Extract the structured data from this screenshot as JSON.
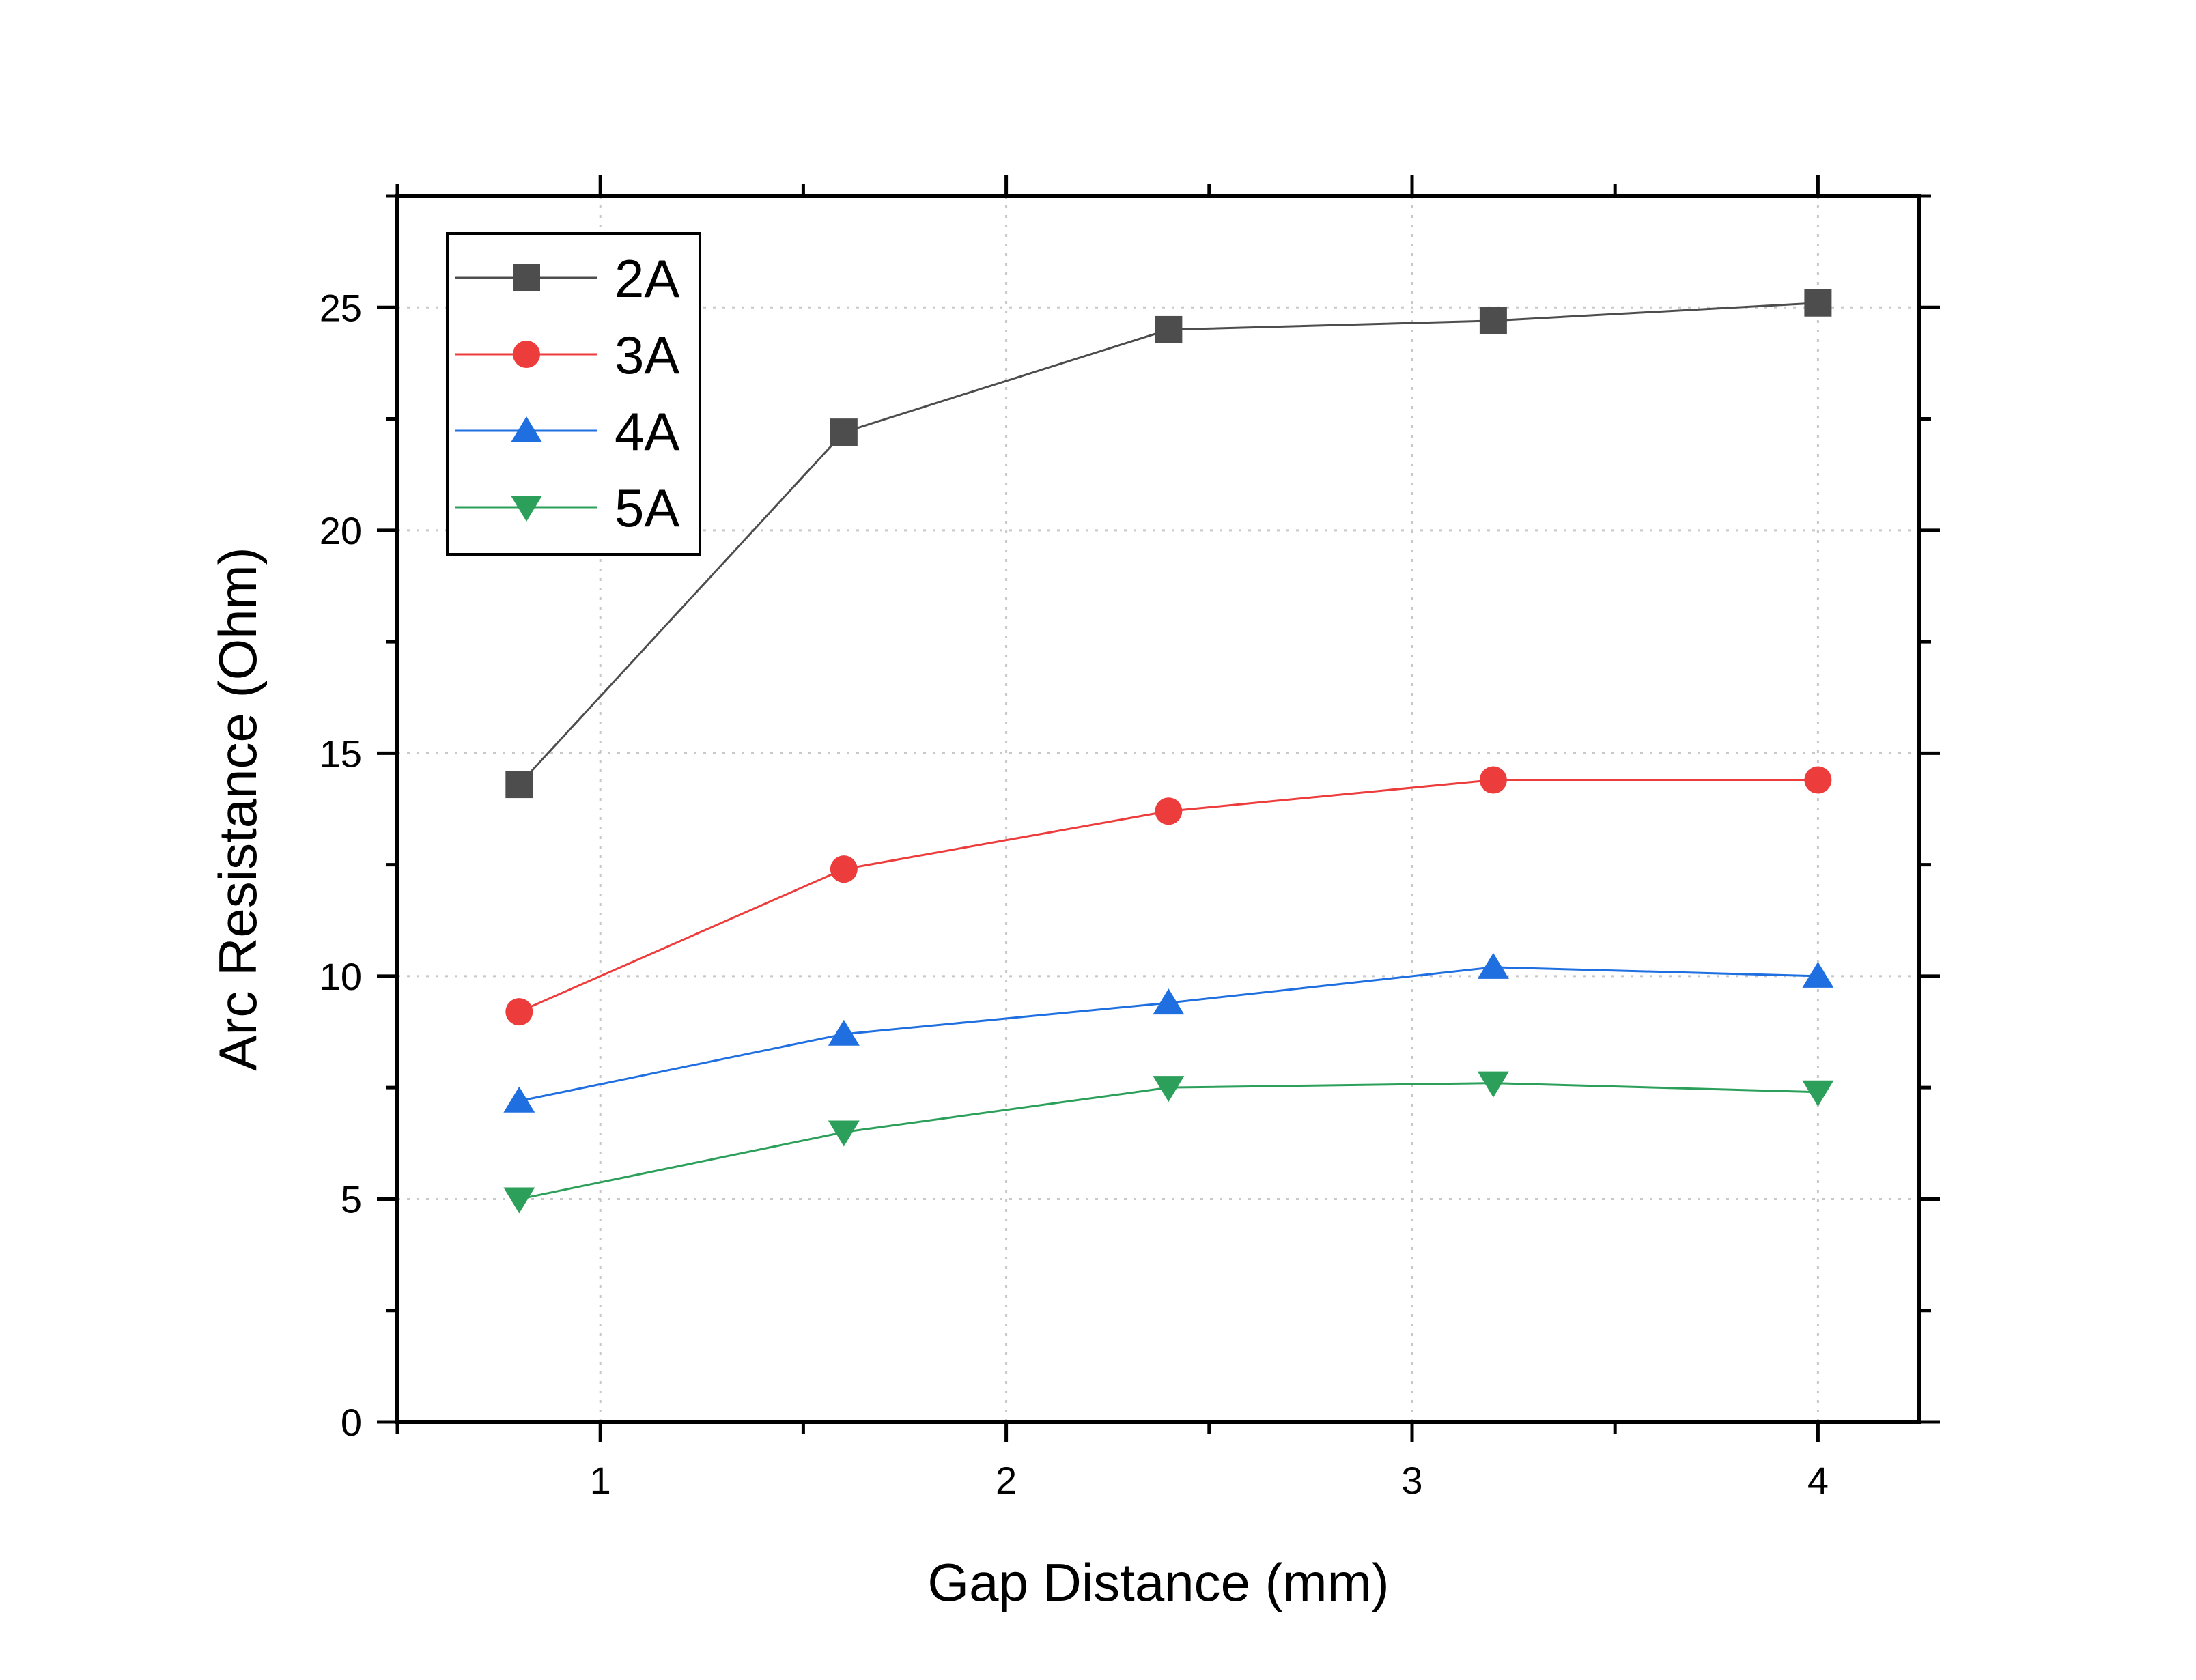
{
  "chart_data": {
    "type": "line",
    "title": "",
    "xlabel": "Gap Distance (mm)",
    "ylabel": "Arc Resistance (Ohm)",
    "xlim": [
      0.5,
      4.25
    ],
    "ylim": [
      0,
      27.5
    ],
    "xticks": [
      1,
      2,
      3,
      4
    ],
    "xtick_labels": [
      "1",
      "2",
      "3",
      "4"
    ],
    "yticks": [
      0,
      5,
      10,
      15,
      20,
      25
    ],
    "ytick_labels": [
      "0",
      "5",
      "10",
      "15",
      "20",
      "25"
    ],
    "grid": true,
    "legend_position": "top-left",
    "x": [
      0.8,
      1.6,
      2.4,
      3.2,
      4.0
    ],
    "series": [
      {
        "name": "2A",
        "values": [
          14.3,
          22.2,
          24.5,
          24.7,
          25.1
        ],
        "color": "#4d4d4d",
        "marker": "square"
      },
      {
        "name": "3A",
        "values": [
          9.2,
          12.4,
          13.7,
          14.4,
          14.4
        ],
        "color": "#ec3c3c",
        "marker": "circle"
      },
      {
        "name": "4A",
        "values": [
          7.2,
          8.7,
          9.4,
          10.2,
          10.0
        ],
        "color": "#1f6fe0",
        "marker": "triangle-up"
      },
      {
        "name": "5A",
        "values": [
          5.0,
          6.5,
          7.5,
          7.6,
          7.4
        ],
        "color": "#2ca05a",
        "marker": "triangle-down"
      }
    ]
  }
}
